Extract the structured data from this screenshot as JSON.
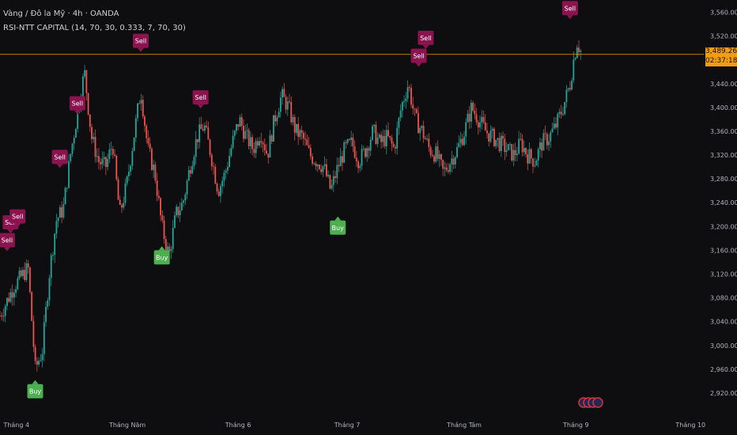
{
  "header": {
    "symbol_line": "Vàng / Đô la Mỹ · 4h · OANDA",
    "indicator_line": "RSI-NTT CAPITAL (14, 70, 30, 0.333, 7, 70, 30)"
  },
  "price_tag": {
    "price": "3,489.265",
    "countdown": "02:37:18"
  },
  "colors": {
    "background": "#0e0e10",
    "up_candle": "#26a69a",
    "down_candle": "#ef5350",
    "sell_marker": "#8b1450",
    "buy_marker": "#4caf50",
    "price_line": "#f39c12",
    "axis_text": "#b2b5be"
  },
  "chart_data": {
    "type": "candlestick",
    "y_axis": {
      "min": 2900,
      "max": 3570,
      "tick_labels": [
        "3,560.000",
        "3,520.000",
        "3,480.000",
        "3,440.000",
        "3,400.000",
        "3,360.000",
        "3,320.000",
        "3,280.000",
        "3,240.000",
        "3,200.000",
        "3,160.000",
        "3,120.000",
        "3,080.000",
        "3,040.000",
        "3,000.000",
        "2,960.000",
        "2,920.000"
      ],
      "tick_values": [
        3560,
        3520,
        3480,
        3440,
        3400,
        3360,
        3320,
        3280,
        3240,
        3200,
        3160,
        3120,
        3080,
        3040,
        3000,
        2960,
        2920
      ]
    },
    "x_axis": {
      "tick_labels": [
        "Tháng 4",
        "Tháng Năm",
        "Tháng 6",
        "Tháng 7",
        "Tháng Tám",
        "Tháng 9",
        "Tháng 10"
      ]
    },
    "current_price": 3489.265,
    "price_path": [
      [
        0,
        3050
      ],
      [
        0.02,
        3100
      ],
      [
        0.04,
        3130
      ],
      [
        0.05,
        2960
      ],
      [
        0.06,
        2990
      ],
      [
        0.07,
        3120
      ],
      [
        0.08,
        3210
      ],
      [
        0.09,
        3230
      ],
      [
        0.1,
        3320
      ],
      [
        0.11,
        3390
      ],
      [
        0.12,
        3460
      ],
      [
        0.13,
        3350
      ],
      [
        0.14,
        3310
      ],
      [
        0.15,
        3300
      ],
      [
        0.16,
        3340
      ],
      [
        0.17,
        3220
      ],
      [
        0.18,
        3270
      ],
      [
        0.19,
        3350
      ],
      [
        0.2,
        3430
      ],
      [
        0.21,
        3330
      ],
      [
        0.22,
        3290
      ],
      [
        0.23,
        3200
      ],
      [
        0.24,
        3150
      ],
      [
        0.25,
        3220
      ],
      [
        0.26,
        3240
      ],
      [
        0.27,
        3300
      ],
      [
        0.28,
        3350
      ],
      [
        0.29,
        3370
      ],
      [
        0.3,
        3320
      ],
      [
        0.31,
        3260
      ],
      [
        0.32,
        3290
      ],
      [
        0.33,
        3340
      ],
      [
        0.34,
        3380
      ],
      [
        0.35,
        3350
      ],
      [
        0.36,
        3330
      ],
      [
        0.37,
        3360
      ],
      [
        0.38,
        3320
      ],
      [
        0.39,
        3380
      ],
      [
        0.4,
        3420
      ],
      [
        0.41,
        3400
      ],
      [
        0.42,
        3360
      ],
      [
        0.43,
        3350
      ],
      [
        0.44,
        3320
      ],
      [
        0.45,
        3310
      ],
      [
        0.46,
        3300
      ],
      [
        0.47,
        3260
      ],
      [
        0.48,
        3300
      ],
      [
        0.49,
        3330
      ],
      [
        0.5,
        3340
      ],
      [
        0.51,
        3310
      ],
      [
        0.52,
        3330
      ],
      [
        0.53,
        3360
      ],
      [
        0.54,
        3340
      ],
      [
        0.55,
        3350
      ],
      [
        0.56,
        3330
      ],
      [
        0.57,
        3400
      ],
      [
        0.58,
        3440
      ],
      [
        0.59,
        3380
      ],
      [
        0.6,
        3360
      ],
      [
        0.61,
        3330
      ],
      [
        0.62,
        3320
      ],
      [
        0.63,
        3290
      ],
      [
        0.64,
        3310
      ],
      [
        0.65,
        3330
      ],
      [
        0.66,
        3360
      ],
      [
        0.67,
        3400
      ],
      [
        0.68,
        3380
      ],
      [
        0.69,
        3360
      ],
      [
        0.7,
        3350
      ],
      [
        0.71,
        3340
      ],
      [
        0.72,
        3330
      ],
      [
        0.73,
        3320
      ],
      [
        0.74,
        3340
      ],
      [
        0.75,
        3320
      ],
      [
        0.76,
        3310
      ],
      [
        0.77,
        3340
      ],
      [
        0.78,
        3350
      ],
      [
        0.79,
        3370
      ],
      [
        0.8,
        3400
      ],
      [
        0.81,
        3440
      ],
      [
        0.815,
        3480
      ],
      [
        0.82,
        3510
      ],
      [
        0.825,
        3495
      ]
    ],
    "signals": [
      {
        "label": "Sell",
        "x": 0.01,
        "price": 3165
      },
      {
        "label": "Sell",
        "x": 0.015,
        "price": 3195
      },
      {
        "label": "Sell",
        "x": 0.025,
        "price": 3205
      },
      {
        "label": "Sell",
        "x": 0.085,
        "price": 3305
      },
      {
        "label": "Sell",
        "x": 0.11,
        "price": 3395
      },
      {
        "label": "Sell",
        "x": 0.2,
        "price": 3500
      },
      {
        "label": "Sell",
        "x": 0.285,
        "price": 3405
      },
      {
        "label": "Sell",
        "x": 0.595,
        "price": 3475
      },
      {
        "label": "Sell",
        "x": 0.605,
        "price": 3505
      },
      {
        "label": "Sell",
        "x": 0.81,
        "price": 3555
      },
      {
        "label": "Buy",
        "x": 0.05,
        "price": 2935
      },
      {
        "label": "Buy",
        "x": 0.23,
        "price": 3160
      },
      {
        "label": "Buy",
        "x": 0.48,
        "price": 3210
      }
    ]
  }
}
